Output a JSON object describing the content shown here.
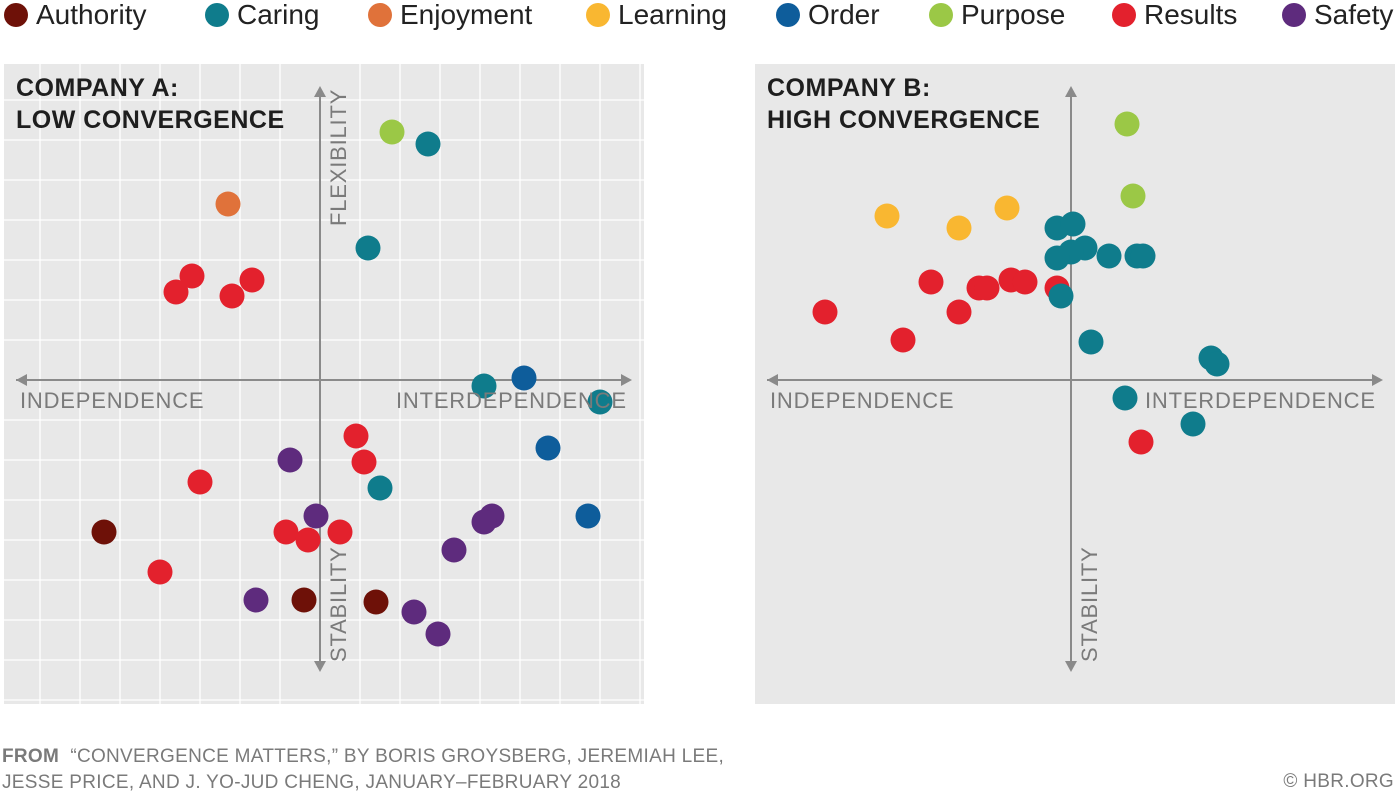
{
  "legend": [
    {
      "name": "Authority",
      "color": "#6e1108"
    },
    {
      "name": "Caring",
      "color": "#0f7c8c"
    },
    {
      "name": "Enjoyment",
      "color": "#e0723a"
    },
    {
      "name": "Learning",
      "color": "#f9b731"
    },
    {
      "name": "Order",
      "color": "#0e5d9b"
    },
    {
      "name": "Purpose",
      "color": "#9bc846"
    },
    {
      "name": "Results",
      "color": "#e3212d"
    },
    {
      "name": "Safety",
      "color": "#5e2b7d"
    }
  ],
  "footer": {
    "source_prefix": "FROM",
    "source_line1": "“CONVERGENCE MATTERS,” BY BORIS GROYSBERG, JEREMIAH LEE,",
    "source_line2": "JESSE PRICE, AND J. YO-JUD CHENG, JANUARY–FEBRUARY 2018",
    "copyright": "© HBR.ORG"
  },
  "chart_data": [
    {
      "type": "scatter",
      "title": "COMPANY A:",
      "subtitle": "LOW CONVERGENCE",
      "x_axis": {
        "neg_label": "INDEPENDENCE",
        "pos_label": "INTERDEPENDENCE",
        "range": [
          -8,
          8
        ]
      },
      "y_axis": {
        "neg_label": "STABILITY",
        "pos_label": "FLEXIBILITY",
        "range": [
          -8,
          8
        ]
      },
      "grid": true,
      "points": [
        {
          "category": "Purpose",
          "x": 1.8,
          "y": 6.2
        },
        {
          "category": "Caring",
          "x": 2.7,
          "y": 5.9
        },
        {
          "category": "Enjoyment",
          "x": -2.3,
          "y": 4.4
        },
        {
          "category": "Caring",
          "x": 1.2,
          "y": 3.3
        },
        {
          "category": "Results",
          "x": -3.2,
          "y": 2.6
        },
        {
          "category": "Results",
          "x": -3.6,
          "y": 2.2
        },
        {
          "category": "Results",
          "x": -1.7,
          "y": 2.5
        },
        {
          "category": "Results",
          "x": -2.2,
          "y": 2.1
        },
        {
          "category": "Order",
          "x": 5.1,
          "y": 0.05
        },
        {
          "category": "Caring",
          "x": 4.1,
          "y": -0.15
        },
        {
          "category": "Caring",
          "x": 7.0,
          "y": -0.55
        },
        {
          "category": "Results",
          "x": 0.9,
          "y": -1.4
        },
        {
          "category": "Order",
          "x": 5.7,
          "y": -1.7
        },
        {
          "category": "Safety",
          "x": -0.75,
          "y": -2.0
        },
        {
          "category": "Results",
          "x": 1.1,
          "y": -2.05
        },
        {
          "category": "Results",
          "x": -3.0,
          "y": -2.55
        },
        {
          "category": "Caring",
          "x": 1.5,
          "y": -2.7
        },
        {
          "category": "Order",
          "x": 6.7,
          "y": -3.4
        },
        {
          "category": "Safety",
          "x": 4.3,
          "y": -3.4
        },
        {
          "category": "Safety",
          "x": 4.1,
          "y": -3.55
        },
        {
          "category": "Safety",
          "x": -0.1,
          "y": -3.4
        },
        {
          "category": "Authority",
          "x": -5.4,
          "y": -3.8
        },
        {
          "category": "Results",
          "x": -0.85,
          "y": -3.8
        },
        {
          "category": "Results",
          "x": 0.5,
          "y": -3.8
        },
        {
          "category": "Results",
          "x": -0.3,
          "y": -4.0
        },
        {
          "category": "Safety",
          "x": 3.35,
          "y": -4.25
        },
        {
          "category": "Results",
          "x": -4.0,
          "y": -4.8
        },
        {
          "category": "Safety",
          "x": -1.6,
          "y": -5.5
        },
        {
          "category": "Authority",
          "x": -0.4,
          "y": -5.5
        },
        {
          "category": "Authority",
          "x": 1.4,
          "y": -5.55
        },
        {
          "category": "Safety",
          "x": 2.35,
          "y": -5.8
        },
        {
          "category": "Safety",
          "x": 2.95,
          "y": -6.35
        }
      ]
    },
    {
      "type": "scatter",
      "title": "COMPANY B:",
      "subtitle": "HIGH CONVERGENCE",
      "x_axis": {
        "neg_label": "INDEPENDENCE",
        "pos_label": "INTERDEPENDENCE",
        "range": [
          -8,
          8
        ]
      },
      "y_axis": {
        "neg_label": "STABILITY",
        "pos_label": "FLEXIBILITY",
        "range": [
          -8,
          8
        ]
      },
      "grid": false,
      "points": [
        {
          "category": "Purpose",
          "x": 1.4,
          "y": 6.4
        },
        {
          "category": "Purpose",
          "x": 1.55,
          "y": 4.6
        },
        {
          "category": "Learning",
          "x": -4.6,
          "y": 4.1
        },
        {
          "category": "Learning",
          "x": -2.8,
          "y": 3.8
        },
        {
          "category": "Learning",
          "x": -1.6,
          "y": 4.3
        },
        {
          "category": "Caring",
          "x": -0.35,
          "y": 3.8
        },
        {
          "category": "Caring",
          "x": 0.05,
          "y": 3.9
        },
        {
          "category": "Caring",
          "x": 0.35,
          "y": 3.3
        },
        {
          "category": "Caring",
          "x": 0.0,
          "y": 3.2
        },
        {
          "category": "Caring",
          "x": -0.35,
          "y": 3.05
        },
        {
          "category": "Caring",
          "x": 0.95,
          "y": 3.1
        },
        {
          "category": "Caring",
          "x": 1.65,
          "y": 3.1
        },
        {
          "category": "Caring",
          "x": 1.8,
          "y": 3.1
        },
        {
          "category": "Results",
          "x": -3.5,
          "y": 2.45
        },
        {
          "category": "Results",
          "x": -2.3,
          "y": 2.3
        },
        {
          "category": "Results",
          "x": -2.1,
          "y": 2.3
        },
        {
          "category": "Results",
          "x": -1.5,
          "y": 2.5
        },
        {
          "category": "Results",
          "x": -1.15,
          "y": 2.45
        },
        {
          "category": "Results",
          "x": -0.35,
          "y": 2.3
        },
        {
          "category": "Caring",
          "x": -0.25,
          "y": 2.1
        },
        {
          "category": "Results",
          "x": -6.15,
          "y": 1.7
        },
        {
          "category": "Results",
          "x": -2.8,
          "y": 1.7
        },
        {
          "category": "Results",
          "x": -4.2,
          "y": 1.0
        },
        {
          "category": "Caring",
          "x": 0.5,
          "y": 0.95
        },
        {
          "category": "Caring",
          "x": 3.5,
          "y": 0.55
        },
        {
          "category": "Caring",
          "x": 3.65,
          "y": 0.4
        },
        {
          "category": "Caring",
          "x": 1.35,
          "y": -0.45
        },
        {
          "category": "Caring",
          "x": 3.05,
          "y": -1.1
        },
        {
          "category": "Results",
          "x": 1.75,
          "y": -1.55
        }
      ]
    }
  ]
}
